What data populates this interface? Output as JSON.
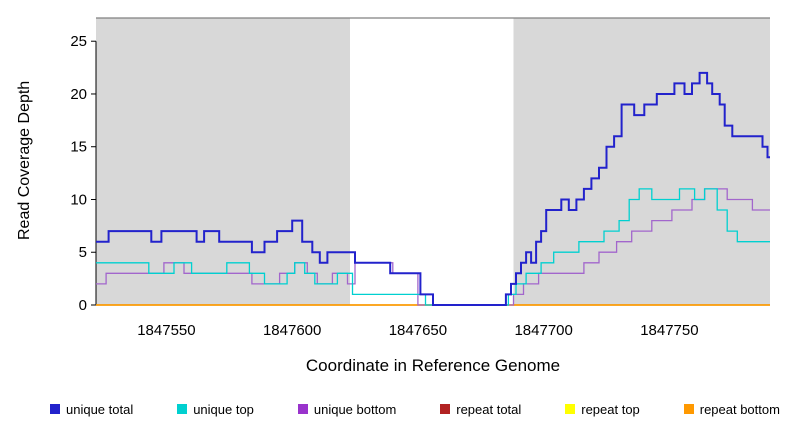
{
  "chart_data": {
    "type": "line",
    "title": "",
    "xlabel": "Coordinate in Reference Genome",
    "ylabel": "Read Coverage Depth",
    "xlim": [
      1847522,
      1847790
    ],
    "ylim": [
      0,
      27.2
    ],
    "x_ticks": [
      1847550,
      1847600,
      1847650,
      1847700,
      1847750
    ],
    "y_ticks": [
      0,
      5,
      10,
      15,
      20,
      25
    ],
    "axis_color": "#000000",
    "top_border_color": "#808080",
    "grid": "off",
    "legend_position": "bottom",
    "shaded_regions": [
      {
        "x_start": 1847522,
        "x_end": 1847623,
        "color": "#d8d8d8"
      },
      {
        "x_start": 1847688,
        "x_end": 1847790,
        "color": "#d8d8d8"
      }
    ],
    "series": [
      {
        "id": "repeat-total",
        "name": "repeat total",
        "color": "#b22222",
        "width": 1.2,
        "points": [
          [
            1847522,
            0
          ]
        ]
      },
      {
        "id": "repeat-top",
        "name": "repeat top",
        "color": "#ffff00",
        "width": 1.2,
        "points": [
          [
            1847522,
            0
          ]
        ]
      },
      {
        "id": "repeat-bottom",
        "name": "repeat bottom",
        "color": "#ff9900",
        "width": 1.6,
        "points": [
          [
            1847522,
            0
          ]
        ]
      },
      {
        "id": "unique-bottom",
        "name": "unique bottom",
        "color": "#a266cc",
        "width": 1.3,
        "points": [
          [
            1847522,
            2
          ],
          [
            1847526,
            3
          ],
          [
            1847549,
            4
          ],
          [
            1847557,
            3
          ],
          [
            1847584,
            2
          ],
          [
            1847595,
            3
          ],
          [
            1847601,
            4
          ],
          [
            1847606,
            3
          ],
          [
            1847610,
            2
          ],
          [
            1847616,
            3
          ],
          [
            1847622,
            2
          ],
          [
            1847625,
            4
          ],
          [
            1847640,
            3
          ],
          [
            1847650,
            0
          ],
          [
            1847688,
            1
          ],
          [
            1847692,
            2
          ],
          [
            1847698,
            3
          ],
          [
            1847716,
            4
          ],
          [
            1847722,
            5
          ],
          [
            1847729,
            6
          ],
          [
            1847735,
            7
          ],
          [
            1847743,
            8
          ],
          [
            1847751,
            9
          ],
          [
            1847759,
            10
          ],
          [
            1847764,
            11
          ],
          [
            1847773,
            10
          ],
          [
            1847783,
            9
          ]
        ]
      },
      {
        "id": "unique-top",
        "name": "unique top",
        "color": "#00d0d0",
        "width": 1.3,
        "points": [
          [
            1847522,
            4
          ],
          [
            1847543,
            3
          ],
          [
            1847553,
            4
          ],
          [
            1847560,
            3
          ],
          [
            1847574,
            4
          ],
          [
            1847583,
            3
          ],
          [
            1847589,
            2
          ],
          [
            1847598,
            3
          ],
          [
            1847601,
            4
          ],
          [
            1847605,
            3
          ],
          [
            1847609,
            2
          ],
          [
            1847618,
            3
          ],
          [
            1847624,
            1
          ],
          [
            1847653,
            0
          ],
          [
            1847686,
            1
          ],
          [
            1847689,
            2
          ],
          [
            1847693,
            3
          ],
          [
            1847699,
            4
          ],
          [
            1847704,
            5
          ],
          [
            1847714,
            6
          ],
          [
            1847724,
            7
          ],
          [
            1847730,
            8
          ],
          [
            1847734,
            10
          ],
          [
            1847738,
            11
          ],
          [
            1847743,
            10
          ],
          [
            1847754,
            11
          ],
          [
            1847760,
            10
          ],
          [
            1847764,
            11
          ],
          [
            1847769,
            9
          ],
          [
            1847773,
            7
          ],
          [
            1847777,
            6
          ]
        ]
      },
      {
        "id": "unique-total",
        "name": "unique total",
        "color": "#2222cc",
        "width": 2,
        "points": [
          [
            1847522,
            6
          ],
          [
            1847527,
            7
          ],
          [
            1847544,
            6
          ],
          [
            1847548,
            7
          ],
          [
            1847562,
            6
          ],
          [
            1847565,
            7
          ],
          [
            1847571,
            6
          ],
          [
            1847584,
            5
          ],
          [
            1847589,
            6
          ],
          [
            1847594,
            7
          ],
          [
            1847600,
            8
          ],
          [
            1847604,
            6
          ],
          [
            1847608,
            5
          ],
          [
            1847611,
            4
          ],
          [
            1847614,
            5
          ],
          [
            1847625,
            4
          ],
          [
            1847639,
            3
          ],
          [
            1847651,
            1
          ],
          [
            1847656,
            0
          ],
          [
            1847685,
            1
          ],
          [
            1847687,
            2
          ],
          [
            1847689,
            3
          ],
          [
            1847691,
            4
          ],
          [
            1847693,
            5
          ],
          [
            1847695,
            4
          ],
          [
            1847697,
            6
          ],
          [
            1847699,
            7
          ],
          [
            1847701,
            9
          ],
          [
            1847707,
            10
          ],
          [
            1847710,
            9
          ],
          [
            1847713,
            10
          ],
          [
            1847716,
            11
          ],
          [
            1847719,
            12
          ],
          [
            1847722,
            13
          ],
          [
            1847725,
            15
          ],
          [
            1847728,
            16
          ],
          [
            1847731,
            19
          ],
          [
            1847736,
            18
          ],
          [
            1847740,
            19
          ],
          [
            1847745,
            20
          ],
          [
            1847752,
            21
          ],
          [
            1847756,
            20
          ],
          [
            1847759,
            21
          ],
          [
            1847762,
            22
          ],
          [
            1847765,
            21
          ],
          [
            1847767,
            20
          ],
          [
            1847770,
            19
          ],
          [
            1847772,
            17
          ],
          [
            1847775,
            16
          ],
          [
            1847787,
            15
          ],
          [
            1847789,
            14
          ]
        ]
      }
    ],
    "legend": [
      {
        "label": "unique total",
        "color": "#2222cc"
      },
      {
        "label": "unique top",
        "color": "#00d0d0"
      },
      {
        "label": "unique bottom",
        "color": "#9933cc"
      },
      {
        "label": "repeat total",
        "color": "#b22222"
      },
      {
        "label": "repeat top",
        "color": "#ffff00"
      },
      {
        "label": "repeat bottom",
        "color": "#ff9900"
      }
    ]
  }
}
